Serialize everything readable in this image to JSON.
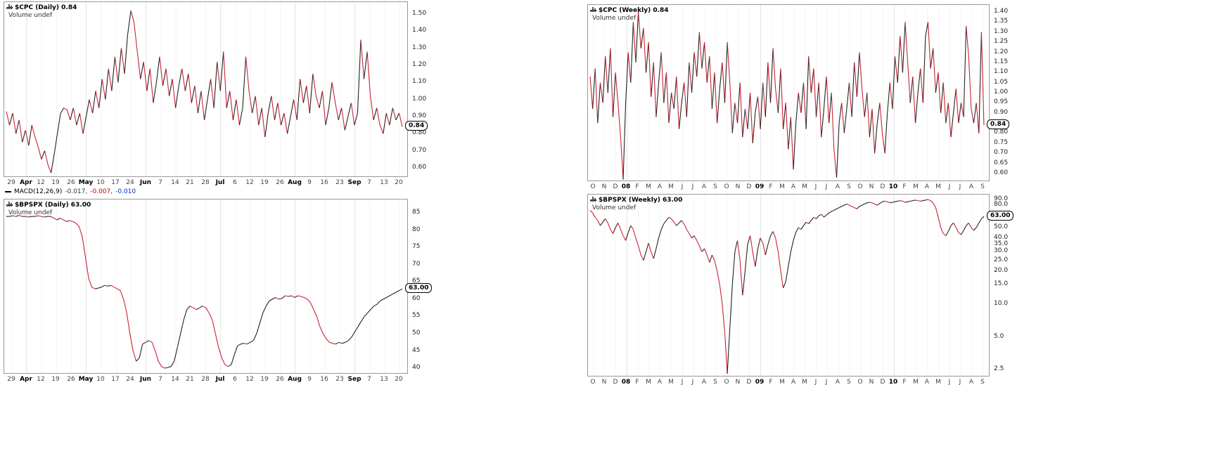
{
  "colors": {
    "line_up": "#222222",
    "line_down": "#cc2233",
    "macd_value1": "#333333",
    "macd_value2": "#cc0000",
    "macd_value3": "#0033cc",
    "volume_icon": "#555555"
  },
  "chart_data": [
    {
      "name": "cpc-daily",
      "type": "line",
      "title": "$CPC (Daily) 0.84",
      "legend_volume": "Volume undef",
      "last_label": "0.84",
      "scale": "linear",
      "ylim": [
        0.55,
        1.57
      ],
      "y_ticks": [
        "1.50",
        "1.40",
        "1.30",
        "1.20",
        "1.10",
        "1.00",
        "0.90",
        "0.80",
        "0.70",
        "0.60"
      ],
      "x_labels": [
        "29",
        "Apr",
        "12",
        "19",
        "26",
        "May",
        "10",
        "17",
        "24",
        "Jun",
        "7",
        "14",
        "21",
        "28",
        "Jul",
        "6",
        "12",
        "19",
        "26",
        "Aug",
        "9",
        "16",
        "23",
        "Sep",
        "7",
        "13",
        "20"
      ],
      "bold_ticks": [
        1,
        5,
        9,
        14,
        19,
        23
      ],
      "macd": {
        "label": "MACD(12,26,9)",
        "value1": "-0.017,",
        "value2": "-0.007,",
        "value3": "-0.010"
      },
      "values": [
        0.93,
        0.85,
        0.92,
        0.8,
        0.88,
        0.75,
        0.82,
        0.73,
        0.85,
        0.78,
        0.72,
        0.65,
        0.7,
        0.62,
        0.57,
        0.68,
        0.8,
        0.92,
        0.95,
        0.94,
        0.88,
        0.95,
        0.85,
        0.92,
        0.8,
        0.9,
        1.0,
        0.92,
        1.05,
        0.95,
        1.12,
        1.0,
        1.18,
        1.05,
        1.25,
        1.1,
        1.3,
        1.15,
        1.38,
        1.52,
        1.45,
        1.28,
        1.12,
        1.22,
        1.05,
        1.18,
        0.98,
        1.1,
        1.25,
        1.08,
        1.18,
        1.02,
        1.12,
        0.95,
        1.08,
        1.18,
        1.05,
        1.15,
        0.98,
        1.08,
        0.92,
        1.05,
        0.88,
        1.0,
        1.12,
        0.95,
        1.22,
        1.05,
        1.28,
        0.95,
        1.05,
        0.88,
        1.0,
        0.85,
        0.95,
        1.25,
        1.05,
        0.92,
        1.02,
        0.85,
        0.95,
        0.78,
        0.92,
        1.02,
        0.88,
        0.98,
        0.85,
        0.92,
        0.8,
        0.9,
        1.0,
        0.88,
        1.12,
        0.98,
        1.08,
        0.92,
        1.15,
        1.02,
        0.95,
        1.05,
        0.85,
        0.95,
        1.1,
        0.98,
        0.88,
        0.95,
        0.82,
        0.9,
        0.98,
        0.85,
        0.92,
        1.35,
        1.12,
        1.28,
        1.02,
        0.88,
        0.95,
        0.85,
        0.8,
        0.92,
        0.85,
        0.95,
        0.88,
        0.92,
        0.84
      ]
    },
    {
      "name": "cpc-weekly",
      "type": "line",
      "title": "$CPC (Weekly) 0.84",
      "legend_volume": "Volume undef",
      "last_label": "0.84",
      "scale": "linear",
      "ylim": [
        0.565,
        1.435
      ],
      "y_ticks": [
        "1.40",
        "1.35",
        "1.30",
        "1.25",
        "1.20",
        "1.15",
        "1.10",
        "1.05",
        "1.00",
        "0.95",
        "0.90",
        "0.80",
        "0.75",
        "0.70",
        "0.65",
        "0.60"
      ],
      "x_labels": [
        "O",
        "N",
        "D",
        "08",
        "F",
        "M",
        "A",
        "M",
        "J",
        "J",
        "A",
        "S",
        "O",
        "N",
        "D",
        "09",
        "F",
        "M",
        "A",
        "M",
        "J",
        "J",
        "A",
        "S",
        "O",
        "N",
        "D",
        "10",
        "F",
        "M",
        "A",
        "M",
        "J",
        "J",
        "A",
        "S"
      ],
      "bold_ticks": [
        3,
        15,
        27
      ],
      "values": [
        1.08,
        0.92,
        1.12,
        0.85,
        1.05,
        0.95,
        1.18,
        1.0,
        1.22,
        0.88,
        1.1,
        0.95,
        0.78,
        0.57,
        0.95,
        1.2,
        1.05,
        1.35,
        1.15,
        1.4,
        1.22,
        1.32,
        1.1,
        1.25,
        0.98,
        1.15,
        0.88,
        1.05,
        1.2,
        0.95,
        1.1,
        0.85,
        1.0,
        0.92,
        1.08,
        0.82,
        0.95,
        1.05,
        0.88,
        1.15,
        1.0,
        1.2,
        1.08,
        1.3,
        1.12,
        1.25,
        1.05,
        1.18,
        0.92,
        1.1,
        0.85,
        1.02,
        1.15,
        0.95,
        1.25,
        1.05,
        0.8,
        0.95,
        0.85,
        1.05,
        0.78,
        0.92,
        0.82,
        1.0,
        0.75,
        0.9,
        0.98,
        0.82,
        1.05,
        0.88,
        1.15,
        0.95,
        1.22,
        1.02,
        0.9,
        1.12,
        0.82,
        0.95,
        0.72,
        0.88,
        0.62,
        0.85,
        1.0,
        0.9,
        1.05,
        0.82,
        1.18,
        1.0,
        1.12,
        0.88,
        1.05,
        0.78,
        0.92,
        1.08,
        0.85,
        1.0,
        0.72,
        0.58,
        0.85,
        0.95,
        0.8,
        0.92,
        1.05,
        0.88,
        1.15,
        0.98,
        1.2,
        1.02,
        0.88,
        1.0,
        0.78,
        0.92,
        0.7,
        0.85,
        0.95,
        0.8,
        0.7,
        0.9,
        1.05,
        0.92,
        1.18,
        1.05,
        1.28,
        1.1,
        1.35,
        1.15,
        0.95,
        1.08,
        0.85,
        1.0,
        1.12,
        0.95,
        1.28,
        1.35,
        1.12,
        1.22,
        1.0,
        1.1,
        0.9,
        1.05,
        0.85,
        0.95,
        0.78,
        0.9,
        1.02,
        0.85,
        0.95,
        0.88,
        1.33,
        1.18,
        0.92,
        0.85,
        0.95,
        0.8,
        1.3,
        0.84
      ]
    },
    {
      "name": "bpspx-daily",
      "type": "line",
      "title": "$BPSPX (Daily) 63.00",
      "legend_volume": "Volume undef",
      "last_label": "63.00",
      "scale": "linear",
      "ylim": [
        38.6,
        88.9
      ],
      "y_ticks": [
        "85",
        "80",
        "75",
        "70",
        "65",
        "60",
        "55",
        "50",
        "45",
        "40"
      ],
      "x_labels": [
        "29",
        "Apr",
        "12",
        "19",
        "26",
        "May",
        "10",
        "17",
        "24",
        "Jun",
        "7",
        "14",
        "21",
        "28",
        "Jul",
        "6",
        "12",
        "19",
        "26",
        "Aug",
        "9",
        "16",
        "23",
        "Sep",
        "7",
        "13",
        "20"
      ],
      "bold_ticks": [
        1,
        5,
        9,
        14,
        19,
        23
      ],
      "values": [
        84,
        84,
        84.2,
        84,
        84.3,
        84,
        84,
        83.8,
        84,
        84,
        84.2,
        84,
        83.8,
        84,
        84,
        83.5,
        83,
        83.5,
        83,
        82.5,
        82.8,
        82.5,
        82,
        81,
        78,
        72,
        66,
        63.5,
        63,
        63.2,
        63.5,
        64,
        63.8,
        64,
        63.5,
        63,
        62.5,
        60,
        56,
        50,
        45,
        42,
        43,
        47,
        47.5,
        48,
        47.5,
        45,
        42,
        40.5,
        40,
        40.2,
        40.5,
        42,
        46,
        50,
        54,
        57,
        58,
        57.5,
        57,
        57.5,
        58,
        57.5,
        56,
        54,
        50,
        46,
        43,
        41,
        40.5,
        41,
        44,
        46.5,
        47,
        47.2,
        47,
        47.5,
        48,
        50,
        53,
        56,
        58,
        59.5,
        60,
        60.5,
        60,
        60.2,
        61,
        60.8,
        61,
        60.5,
        61,
        60.8,
        60.5,
        60,
        59,
        57,
        55,
        52,
        50,
        48.5,
        47.5,
        47.2,
        47,
        47.5,
        47.2,
        47.5,
        48,
        49,
        50.5,
        52,
        53.5,
        55,
        56,
        57,
        58,
        58.5,
        59.5,
        60,
        60.5,
        61,
        61.5,
        62,
        62.5,
        63
      ]
    },
    {
      "name": "bpspx-weekly",
      "type": "line",
      "title": "$BPSPX (Weekly) 63.00",
      "legend_volume": "Volume undef",
      "last_label": "63.00",
      "scale": "log",
      "ylim": [
        2.2,
        100
      ],
      "y_ticks": [
        "90.0",
        "80.0",
        "50.0",
        "40.0",
        "35.0",
        "30.0",
        "25.0",
        "20.0",
        "15.0",
        "10.0",
        "5.0",
        "2.5"
      ],
      "x_labels": [
        "O",
        "N",
        "D",
        "08",
        "F",
        "M",
        "A",
        "M",
        "J",
        "J",
        "A",
        "S",
        "O",
        "N",
        "D",
        "09",
        "F",
        "M",
        "A",
        "M",
        "J",
        "J",
        "A",
        "S",
        "O",
        "N",
        "D",
        "10",
        "F",
        "M",
        "A",
        "M",
        "J",
        "J",
        "A",
        "S"
      ],
      "bold_ticks": [
        3,
        15,
        27
      ],
      "values": [
        72,
        68,
        62,
        58,
        52,
        56,
        60,
        55,
        48,
        44,
        50,
        55,
        48,
        42,
        38,
        45,
        52,
        48,
        40,
        34,
        28,
        25,
        30,
        36,
        30,
        26,
        32,
        40,
        48,
        54,
        58,
        62,
        60,
        56,
        52,
        55,
        58,
        54,
        48,
        44,
        40,
        42,
        38,
        34,
        30,
        32,
        28,
        24,
        28,
        25,
        20,
        15,
        10,
        5.5,
        2.3,
        6,
        15,
        30,
        38,
        25,
        12,
        20,
        35,
        42,
        30,
        22,
        32,
        40,
        36,
        28,
        35,
        42,
        46,
        40,
        30,
        20,
        14,
        16,
        22,
        30,
        38,
        45,
        50,
        48,
        52,
        56,
        54,
        58,
        62,
        60,
        64,
        66,
        62,
        65,
        68,
        70,
        72,
        74,
        76,
        78,
        80,
        82,
        80,
        78,
        76,
        74,
        78,
        80,
        82,
        84,
        85,
        84,
        82,
        80,
        83,
        86,
        87,
        86,
        84,
        85,
        86,
        87,
        88,
        87,
        85,
        86,
        87,
        88,
        89,
        88,
        87,
        88,
        89,
        90,
        88,
        84,
        76,
        62,
        50,
        44,
        42,
        46,
        52,
        55,
        50,
        45,
        43,
        47,
        52,
        55,
        50,
        47,
        50,
        55,
        60,
        63
      ]
    }
  ]
}
